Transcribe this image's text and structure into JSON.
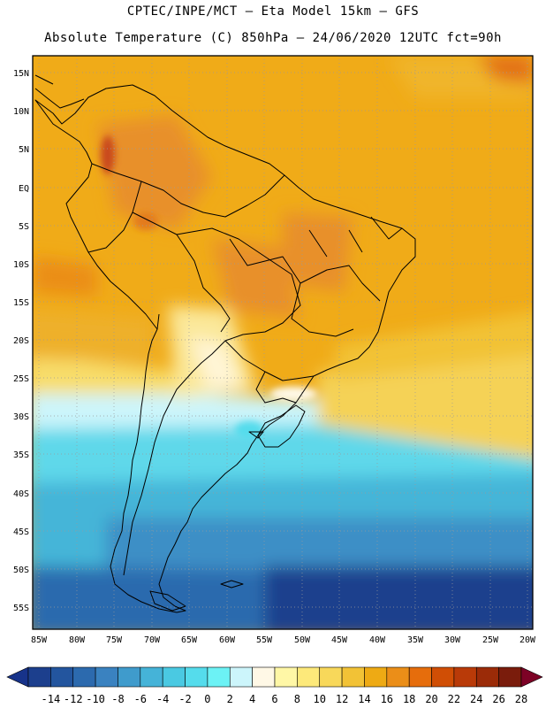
{
  "header": {
    "title_line1": "CPTEC/INPE/MCT –  Eta Model 15km – GFS",
    "title_line2": "Absolute Temperature (C) 850hPa – 24/06/2020 12UTC fct=90h"
  },
  "map": {
    "region": "South America",
    "variable": "Absolute Temperature",
    "units": "C",
    "level": "850hPa",
    "lat_labels": [
      "15N",
      "10N",
      "5N",
      "EQ",
      "5S",
      "10S",
      "15S",
      "20S",
      "25S",
      "30S",
      "35S",
      "40S",
      "45S",
      "50S",
      "55S"
    ],
    "lon_labels": [
      "85W",
      "80W",
      "75W",
      "70W",
      "65W",
      "60W",
      "55W",
      "50W",
      "45W",
      "40W",
      "35W",
      "30W",
      "25W",
      "20W"
    ]
  },
  "colorbar": {
    "labels": [
      "-14",
      "-12",
      "-10",
      "-8",
      "-6",
      "-4",
      "-2",
      "0",
      "2",
      "4",
      "6",
      "8",
      "10",
      "12",
      "14",
      "16",
      "18",
      "20",
      "22",
      "24",
      "26",
      "28"
    ],
    "colors": [
      "#1c3f8d",
      "#23559e",
      "#2c6aae",
      "#3a82c0",
      "#3f9bcc",
      "#45b3d8",
      "#4ac9e2",
      "#55dcec",
      "#6cf2f5",
      "#ccf5fb",
      "#fff8e6",
      "#fff7a6",
      "#fde97a",
      "#f8d85a",
      "#f2c236",
      "#eeaa14",
      "#eb8e18",
      "#e66d0c",
      "#d04e05",
      "#b93a08",
      "#9b2b08",
      "#7a1c0c"
    ],
    "min_arrow_color": "#17338a",
    "max_arrow_color": "#7d0226"
  }
}
